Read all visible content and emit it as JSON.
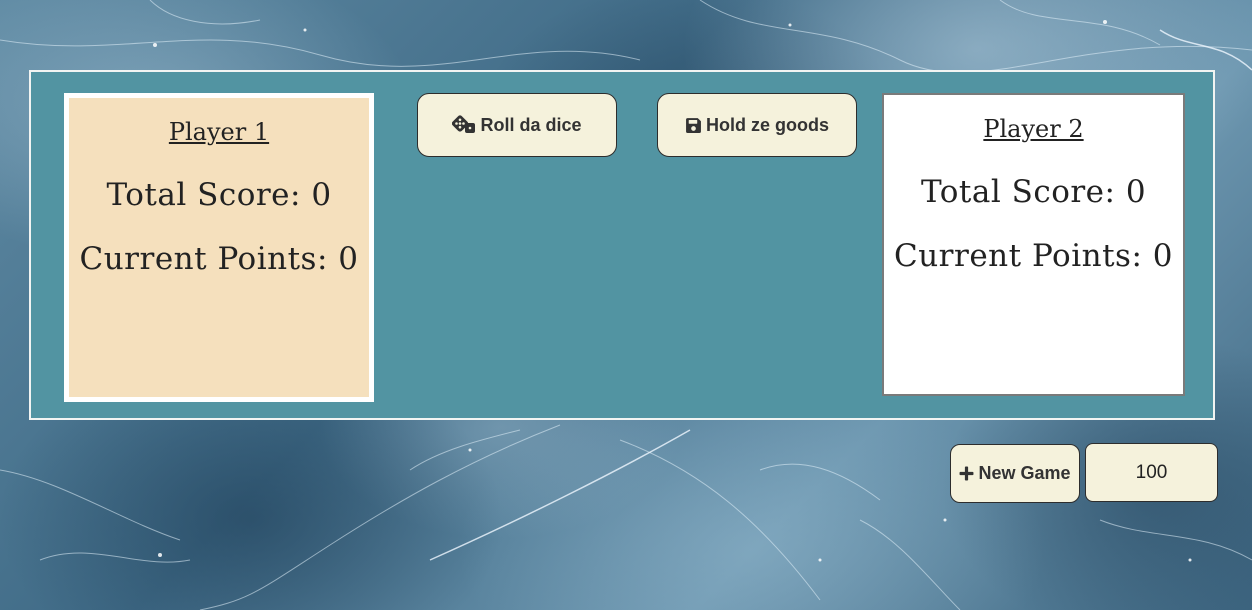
{
  "board": {
    "player_1": {
      "name": "Player 1",
      "total_score_text": "Total Score: 0",
      "current_points_text": "Current Points: 0",
      "active": true
    },
    "player_2": {
      "name": "Player 2",
      "total_score_text": "Total Score: 0",
      "current_points_text": "Current Points: 0",
      "active": false
    },
    "actions": {
      "roll_label": "Roll da dice",
      "roll_icon": "dice-icon",
      "hold_label": "Hold ze goods",
      "hold_icon": "floppy-disk-icon"
    }
  },
  "controls": {
    "new_game_label": "New Game",
    "new_game_icon": "plus-icon",
    "target_score_value": "100"
  },
  "colors": {
    "board": "#5294a2",
    "active_player": "#f5e0bd",
    "inactive_player": "#ffffff",
    "button": "#f5f2dc"
  }
}
